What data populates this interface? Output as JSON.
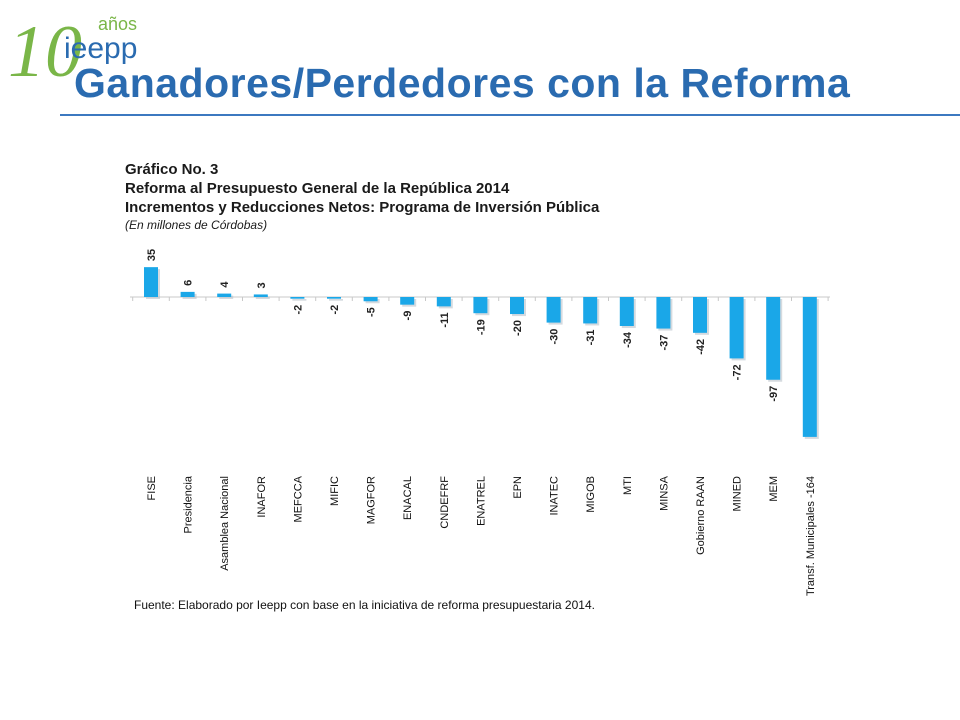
{
  "logo": {
    "number": "10",
    "anos": "años",
    "brand": "ieepp",
    "colors": {
      "green": "#7ab648",
      "blue": "#2a6bb0"
    }
  },
  "page": {
    "title": "Ganadores/Perdedores con la Reforma"
  },
  "chart_heading": {
    "line1": "Gráfico No. 3",
    "line2": "Reforma al Presupuesto General de la República 2014",
    "line3": "Incrementos y Reducciones Netos: Programa de Inversión Pública",
    "units": "(En millones de Córdobas)"
  },
  "chart_data": {
    "type": "bar",
    "title": "Incrementos y Reducciones Netos: Programa de Inversión Pública",
    "xlabel": "",
    "ylabel": "",
    "categories": [
      "FISE",
      "Presidencia",
      "Asamblea Nacional",
      "INAFOR",
      "MEFCCA",
      "MIFIC",
      "MAGFOR",
      "ENACAL",
      "CNDEFRF",
      "ENATREL",
      "EPN",
      "INATEC",
      "MIGOB",
      "MTI",
      "MINSA",
      "Gobierno RAAN",
      "MINED",
      "MEM",
      "Transf. Municipales -164"
    ],
    "values": [
      35,
      6,
      4,
      3,
      -2,
      -2,
      -5,
      -9,
      -11,
      -19,
      -20,
      -30,
      -31,
      -34,
      -37,
      -42,
      -72,
      -97,
      -164
    ],
    "data_labels": [
      "35",
      "6",
      "4",
      "3",
      "-2",
      "-2",
      "-5",
      "-9",
      "-11",
      "-19",
      "-20",
      "-30",
      "-31",
      "-34",
      "-37",
      "-42",
      "-72",
      "-97",
      ""
    ],
    "ylim": [
      -164,
      35
    ],
    "grid": false,
    "legend": "none",
    "colors": {
      "bar": "#1aa7e8",
      "axis": "#c8c8c8"
    }
  },
  "source_note": "Fuente: Elaborado por Ieepp con base en la iniciativa de reforma presupuestaria 2014."
}
